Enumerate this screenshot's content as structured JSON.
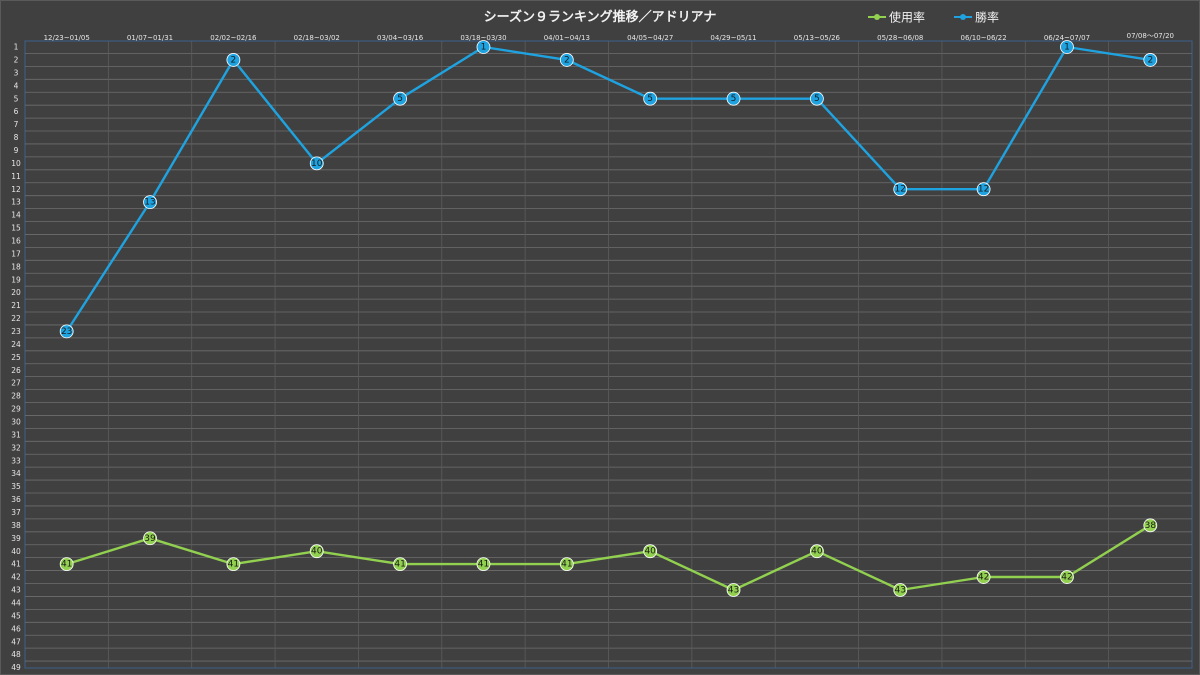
{
  "chart_data": {
    "type": "line",
    "title": "シーズン９ランキング推移／アドリアナ",
    "categories": [
      "12/23~01/05",
      "01/07~01/31",
      "02/02~02/16",
      "02/18~03/02",
      "03/04~03/16",
      "03/18~03/30",
      "04/01~04/13",
      "04/05~04/27",
      "04/29~05/11",
      "05/13~05/26",
      "05/28~06/08",
      "06/10~06/22",
      "06/24~07/07",
      "07/08～07/20"
    ],
    "y_ticks": [
      1,
      2,
      3,
      4,
      5,
      6,
      7,
      8,
      9,
      10,
      11,
      12,
      13,
      14,
      15,
      16,
      17,
      18,
      19,
      20,
      21,
      22,
      23,
      24,
      25,
      26,
      27,
      28,
      29,
      30,
      31,
      32,
      33,
      34,
      35,
      36,
      37,
      38,
      39,
      40,
      41,
      42,
      43,
      44,
      45,
      46,
      47,
      48,
      49
    ],
    "ylim": [
      1,
      49
    ],
    "y_inverted": true,
    "grid": true,
    "legend_position": "top-right",
    "series": [
      {
        "name": "使用率",
        "color": "#92d050",
        "values": [
          41,
          39,
          41,
          40,
          41,
          41,
          41,
          40,
          43,
          40,
          43,
          42,
          42,
          38
        ]
      },
      {
        "name": "勝率",
        "color": "#1fa3e0",
        "values": [
          23,
          13,
          2,
          10,
          5,
          1,
          2,
          5,
          5,
          5,
          12,
          12,
          1,
          2
        ]
      }
    ]
  }
}
